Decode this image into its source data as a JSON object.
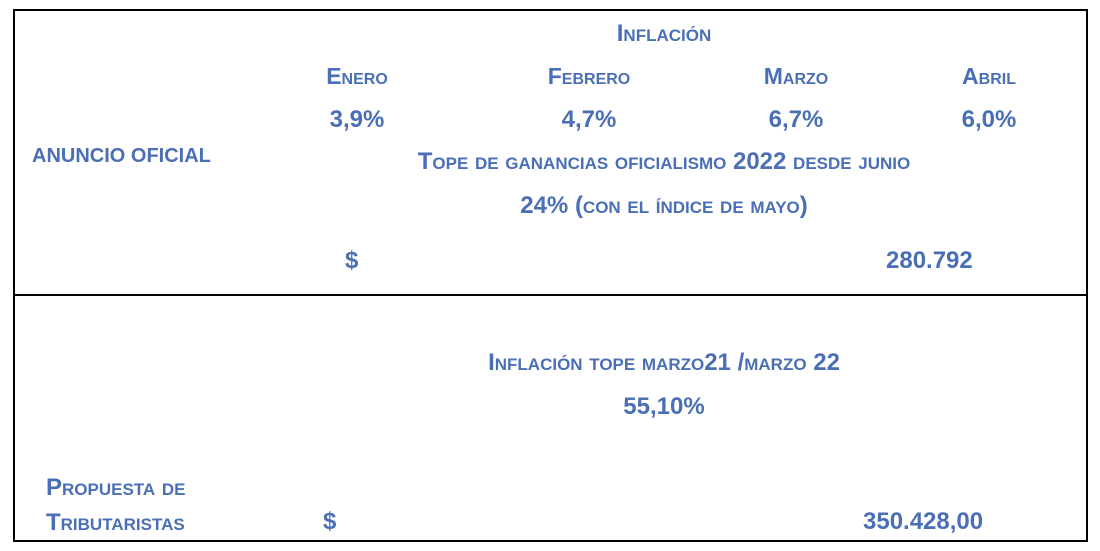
{
  "top": {
    "title": "Inflación",
    "months": [
      {
        "name": "Enero",
        "value": "3,9%"
      },
      {
        "name": "Febrero",
        "value": "4,7%"
      },
      {
        "name": "Marzo",
        "value": "6,7%"
      },
      {
        "name": "Abril",
        "value": "6,0%"
      }
    ],
    "row_label": "ANUNCIO OFICIAL",
    "tope_line1": "Tope de ganancias oficialismo 2022 desde junio",
    "tope_line2": "24% (con el índice de mayo)",
    "currency": "$",
    "amount": "280.792"
  },
  "bottom": {
    "title": "Inflación tope marzo21 /marzo 22",
    "percent": "55,10%",
    "label_line1": "Propuesta de",
    "label_line2": "Tributaristas",
    "currency": "$",
    "amount": "350.428,00"
  }
}
